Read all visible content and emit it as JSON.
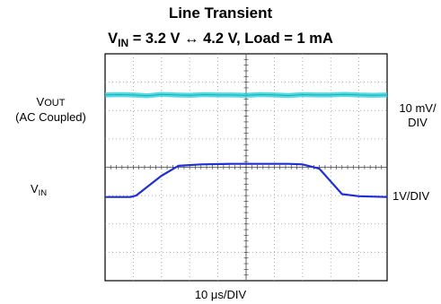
{
  "chart_data": {
    "type": "line",
    "title": "Line Transient",
    "subtitle": {
      "prefix": "V",
      "sub": "IN",
      "rest": " = 3.2 V ↔ 4.2 V, Load = 1 mA"
    },
    "xlabel": "10 μs/DIV",
    "x_divisions": 10,
    "y_divisions": 8,
    "grid": true,
    "left_labels": {
      "vout_prefix": "V",
      "vout_sub": "OUT",
      "vout_note": "(AC Coupled)",
      "vin_prefix": "V",
      "vin_sub": "IN"
    },
    "right_labels": {
      "vout_scale_1": "10 mV/",
      "vout_scale_2": "DIV",
      "vin_scale": "1V/DIV"
    },
    "series": [
      {
        "key": "vout",
        "color": "#35d6e2",
        "x": [
          0,
          0.5,
          1,
          1.5,
          2,
          2.5,
          3,
          3.5,
          4,
          4.5,
          5,
          5.5,
          6,
          6.5,
          7,
          7.5,
          8,
          8.5,
          9,
          9.5,
          10
        ],
        "y": [
          6.55,
          6.56,
          6.55,
          6.52,
          6.57,
          6.55,
          6.54,
          6.56,
          6.55,
          6.55,
          6.54,
          6.56,
          6.55,
          6.53,
          6.56,
          6.55,
          6.55,
          6.57,
          6.55,
          6.54,
          6.55
        ]
      },
      {
        "key": "vin",
        "color": "#1f2fd6",
        "x": [
          0,
          0.9,
          1.1,
          2,
          2.6,
          3.4,
          4.5,
          5.5,
          6.5,
          7,
          7.6,
          8,
          8.4,
          9,
          10
        ],
        "y": [
          2.95,
          2.95,
          3.0,
          3.7,
          4.05,
          4.1,
          4.12,
          4.12,
          4.12,
          4.1,
          3.95,
          3.5,
          3.05,
          2.98,
          2.95
        ]
      }
    ]
  }
}
